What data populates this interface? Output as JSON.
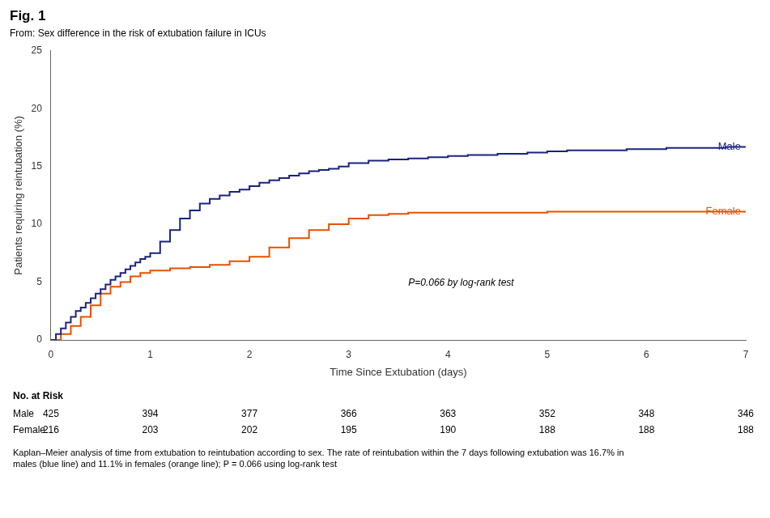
{
  "chart_data": {
    "type": "step",
    "title": "Fig. 1",
    "subtitle": "From: Sex difference in the risk of extubation failure in ICUs",
    "xlabel": "Time Since Extubation (days)",
    "ylabel": "Patients requiring reintubation (%)",
    "xlim": [
      0,
      7
    ],
    "ylim": [
      0,
      25
    ],
    "xticks": [
      0,
      1,
      2,
      3,
      4,
      5,
      6,
      7
    ],
    "yticks": [
      0,
      5,
      10,
      15,
      20,
      25
    ],
    "grid": false,
    "series": [
      {
        "name": "Male",
        "color": "#1a237e",
        "x": [
          0,
          0.05,
          0.1,
          0.15,
          0.2,
          0.25,
          0.3,
          0.35,
          0.4,
          0.45,
          0.5,
          0.55,
          0.6,
          0.65,
          0.7,
          0.75,
          0.8,
          0.85,
          0.9,
          0.95,
          1.0,
          1.1,
          1.2,
          1.3,
          1.4,
          1.5,
          1.6,
          1.7,
          1.8,
          1.9,
          2.0,
          2.1,
          2.2,
          2.3,
          2.4,
          2.5,
          2.6,
          2.7,
          2.8,
          2.9,
          3.0,
          3.2,
          3.4,
          3.6,
          3.8,
          4.0,
          4.2,
          4.5,
          4.8,
          5.0,
          5.2,
          5.5,
          5.8,
          6.0,
          6.2,
          6.5,
          6.8,
          7.0
        ],
        "values": [
          0,
          0.5,
          1.0,
          1.5,
          2.0,
          2.5,
          2.8,
          3.2,
          3.6,
          4.0,
          4.4,
          4.8,
          5.2,
          5.5,
          5.8,
          6.1,
          6.4,
          6.7,
          7.0,
          7.2,
          7.5,
          8.5,
          9.5,
          10.5,
          11.2,
          11.8,
          12.2,
          12.5,
          12.8,
          13.0,
          13.3,
          13.6,
          13.8,
          14.0,
          14.2,
          14.4,
          14.6,
          14.7,
          14.8,
          15.0,
          15.3,
          15.5,
          15.6,
          15.7,
          15.8,
          15.9,
          16.0,
          16.1,
          16.2,
          16.3,
          16.4,
          16.4,
          16.5,
          16.5,
          16.6,
          16.6,
          16.7,
          16.7
        ]
      },
      {
        "name": "Female",
        "color": "#e65100",
        "x": [
          0,
          0.1,
          0.2,
          0.3,
          0.4,
          0.5,
          0.6,
          0.7,
          0.8,
          0.9,
          1.0,
          1.2,
          1.4,
          1.6,
          1.8,
          2.0,
          2.2,
          2.4,
          2.6,
          2.8,
          3.0,
          3.2,
          3.4,
          3.6,
          3.8,
          4.0,
          4.5,
          5.0,
          5.5,
          6.0,
          6.5,
          7.0
        ],
        "values": [
          0,
          0.5,
          1.2,
          2.0,
          3.0,
          4.0,
          4.6,
          5.0,
          5.5,
          5.8,
          6.0,
          6.2,
          6.3,
          6.5,
          6.8,
          7.2,
          8.0,
          8.8,
          9.5,
          10.0,
          10.5,
          10.8,
          10.9,
          11.0,
          11.0,
          11.0,
          11.0,
          11.1,
          11.1,
          11.1,
          11.1,
          11.1
        ]
      }
    ],
    "annotations": [
      {
        "text": "P=0.066 by log-rank test",
        "x": 3.6,
        "y": 4.5
      },
      {
        "text": "Male",
        "x": 6.95,
        "y": 16.7,
        "color": "#1a237e"
      },
      {
        "text": "Female",
        "x": 6.95,
        "y": 11.1,
        "color": "#e65100"
      }
    ],
    "risk_table": {
      "title": "No. at Risk",
      "times": [
        0,
        1,
        2,
        3,
        4,
        5,
        6,
        7
      ],
      "rows": [
        {
          "name": "Male",
          "values": [
            425,
            394,
            377,
            366,
            363,
            352,
            348,
            346
          ]
        },
        {
          "name": "Female",
          "values": [
            216,
            203,
            202,
            195,
            190,
            188,
            188,
            188
          ]
        }
      ]
    },
    "caption": "Kaplan–Meier analysis of time from extubation to reintubation according to sex. The rate of reintubation within the 7 days following extubation was 16.7% in\nmales (blue line) and 11.1% in females (orange line); P = 0.066 using log-rank test"
  }
}
